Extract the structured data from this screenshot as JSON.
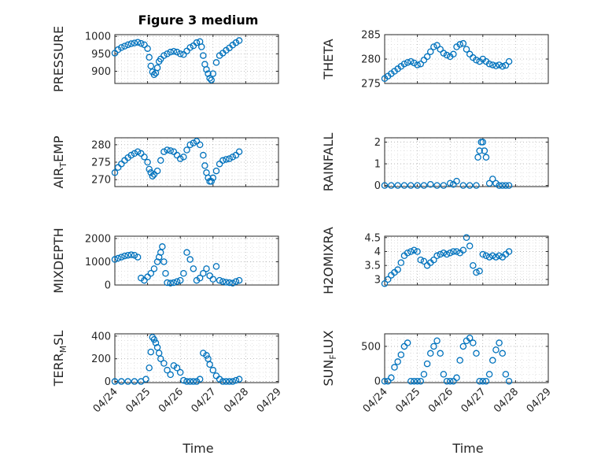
{
  "figure": {
    "title": "Figure 3 medium",
    "xlabel": "Time",
    "marker_color": "#0072BD",
    "axis_color": "#262626",
    "grid_color": "#9a9a9a"
  },
  "chart_data": [
    {
      "type": "scatter",
      "ylabel": "PRESSURE",
      "ylim": [
        865,
        1005
      ],
      "yticks": [
        900,
        950,
        1000
      ],
      "xlim": [
        0,
        5
      ],
      "xticks": [
        "04/24",
        "04/25",
        "04/26",
        "04/27",
        "04/28",
        "04/29"
      ],
      "grid": true,
      "show_xticklabels": false,
      "x": [
        0,
        0.1,
        0.2,
        0.3,
        0.4,
        0.5,
        0.6,
        0.7,
        0.8,
        0.9,
        1.0,
        1.05,
        1.1,
        1.15,
        1.2,
        1.25,
        1.3,
        1.35,
        1.4,
        1.5,
        1.6,
        1.7,
        1.8,
        1.9,
        2.0,
        2.1,
        2.2,
        2.3,
        2.4,
        2.5,
        2.6,
        2.65,
        2.7,
        2.75,
        2.8,
        2.85,
        2.9,
        2.95,
        3.0,
        3.1,
        3.2,
        3.3,
        3.4,
        3.5,
        3.6,
        3.7,
        3.8
      ],
      "y": [
        952,
        962,
        968,
        972,
        976,
        979,
        981,
        983,
        980,
        976,
        965,
        940,
        915,
        898,
        890,
        895,
        910,
        928,
        935,
        945,
        950,
        955,
        957,
        955,
        950,
        948,
        958,
        968,
        973,
        982,
        985,
        970,
        945,
        920,
        905,
        893,
        880,
        875,
        893,
        925,
        945,
        952,
        960,
        967,
        975,
        982,
        988
      ]
    },
    {
      "type": "scatter",
      "ylabel": "THETA",
      "ylim": [
        275,
        285
      ],
      "yticks": [
        275,
        280,
        285
      ],
      "xlim": [
        0,
        5
      ],
      "xticks": [
        "04/24",
        "04/25",
        "04/26",
        "04/27",
        "04/28",
        "04/29"
      ],
      "grid": true,
      "show_xticklabels": false,
      "x": [
        0,
        0.1,
        0.2,
        0.3,
        0.4,
        0.5,
        0.6,
        0.7,
        0.8,
        0.9,
        1.0,
        1.1,
        1.2,
        1.3,
        1.4,
        1.5,
        1.6,
        1.7,
        1.8,
        1.9,
        2.0,
        2.1,
        2.2,
        2.3,
        2.4,
        2.5,
        2.6,
        2.7,
        2.8,
        2.9,
        3.0,
        3.1,
        3.2,
        3.3,
        3.4,
        3.5,
        3.6,
        3.7,
        3.8
      ],
      "y": [
        276,
        276.5,
        277,
        277.5,
        278,
        278.5,
        279,
        279.3,
        279.5,
        279.2,
        278.8,
        279.0,
        279.8,
        280.5,
        281.5,
        282.5,
        282.8,
        282.0,
        281.2,
        280.8,
        280.5,
        281.0,
        282.5,
        283.0,
        283.2,
        282.0,
        281.0,
        280.3,
        279.8,
        279.5,
        280.0,
        279.5,
        279.0,
        278.8,
        278.6,
        278.8,
        278.5,
        278.7,
        279.5
      ]
    },
    {
      "type": "scatter",
      "ylabel": "AIR_TEMP",
      "ylim": [
        268,
        282
      ],
      "yticks": [
        270,
        275,
        280
      ],
      "xlim": [
        0,
        5
      ],
      "xticks": [
        "04/24",
        "04/25",
        "04/26",
        "04/27",
        "04/28",
        "04/29"
      ],
      "grid": true,
      "show_xticklabels": false,
      "x": [
        0,
        0.1,
        0.2,
        0.3,
        0.4,
        0.5,
        0.6,
        0.7,
        0.8,
        0.9,
        1.0,
        1.05,
        1.1,
        1.15,
        1.2,
        1.3,
        1.4,
        1.5,
        1.6,
        1.7,
        1.8,
        1.9,
        2.0,
        2.1,
        2.2,
        2.3,
        2.4,
        2.5,
        2.6,
        2.7,
        2.75,
        2.8,
        2.85,
        2.9,
        2.95,
        3.0,
        3.1,
        3.2,
        3.3,
        3.4,
        3.5,
        3.6,
        3.7,
        3.8
      ],
      "y": [
        272,
        273.5,
        274.5,
        275.5,
        276.3,
        277,
        277.5,
        278,
        277.5,
        276.5,
        275,
        273,
        272,
        271,
        271.5,
        272.5,
        275.5,
        278,
        278.5,
        278.3,
        278,
        277,
        276,
        276.5,
        278.5,
        280,
        280.5,
        281,
        280,
        277,
        274,
        272,
        270.5,
        269.5,
        269.5,
        270.5,
        272.5,
        274.5,
        275.5,
        275.8,
        276,
        276.5,
        277,
        278
      ]
    },
    {
      "type": "scatter",
      "ylabel": "RAINFALL",
      "ylim": [
        -0.05,
        2.2
      ],
      "yticks": [
        0,
        1,
        2
      ],
      "xlim": [
        0,
        5
      ],
      "xticks": [
        "04/24",
        "04/25",
        "04/26",
        "04/27",
        "04/28",
        "04/29"
      ],
      "grid": true,
      "show_xticklabels": false,
      "x": [
        0,
        0.2,
        0.4,
        0.6,
        0.8,
        1.0,
        1.2,
        1.4,
        1.6,
        1.8,
        2.0,
        2.1,
        2.2,
        2.4,
        2.6,
        2.8,
        2.85,
        2.9,
        2.95,
        3.0,
        3.05,
        3.1,
        3.2,
        3.3,
        3.4,
        3.5,
        3.6,
        3.7,
        3.8
      ],
      "y": [
        0,
        0,
        0,
        0,
        0,
        0,
        0,
        0.05,
        0,
        0,
        0.1,
        0.05,
        0.2,
        0,
        0,
        0,
        1.3,
        1.6,
        2.0,
        2.0,
        1.6,
        1.3,
        0.1,
        0.3,
        0.1,
        0,
        0,
        0,
        0
      ]
    },
    {
      "type": "scatter",
      "ylabel": "MIXDEPTH",
      "ylim": [
        0,
        2100
      ],
      "yticks": [
        0,
        1000,
        2000
      ],
      "xlim": [
        0,
        5
      ],
      "xticks": [
        "04/24",
        "04/25",
        "04/26",
        "04/27",
        "04/28",
        "04/29"
      ],
      "grid": true,
      "show_xticklabels": false,
      "x": [
        0,
        0.1,
        0.2,
        0.3,
        0.4,
        0.5,
        0.6,
        0.7,
        0.8,
        0.9,
        1.0,
        1.1,
        1.2,
        1.3,
        1.35,
        1.4,
        1.45,
        1.5,
        1.55,
        1.6,
        1.7,
        1.8,
        1.9,
        2.0,
        2.1,
        2.2,
        2.3,
        2.4,
        2.5,
        2.6,
        2.7,
        2.8,
        2.9,
        3.0,
        3.1,
        3.2,
        3.3,
        3.4,
        3.5,
        3.6,
        3.7,
        3.8
      ],
      "y": [
        1100,
        1150,
        1200,
        1250,
        1280,
        1300,
        1280,
        1200,
        300,
        200,
        350,
        500,
        700,
        1000,
        1200,
        1400,
        1650,
        1000,
        500,
        100,
        80,
        100,
        150,
        200,
        500,
        1400,
        1100,
        700,
        200,
        300,
        500,
        700,
        400,
        250,
        800,
        200,
        150,
        120,
        100,
        80,
        150,
        200
      ]
    },
    {
      "type": "scatter",
      "ylabel": "H2OMIXRA",
      "ylim": [
        2.8,
        4.55
      ],
      "yticks": [
        3,
        3.5,
        4,
        4.5
      ],
      "xlim": [
        0,
        5
      ],
      "xticks": [
        "04/24",
        "04/25",
        "04/26",
        "04/27",
        "04/28",
        "04/29"
      ],
      "grid": true,
      "show_xticklabels": false,
      "x": [
        0,
        0.1,
        0.2,
        0.3,
        0.4,
        0.5,
        0.6,
        0.7,
        0.8,
        0.9,
        1.0,
        1.1,
        1.2,
        1.3,
        1.4,
        1.5,
        1.6,
        1.7,
        1.8,
        1.9,
        2.0,
        2.1,
        2.2,
        2.3,
        2.4,
        2.5,
        2.6,
        2.7,
        2.8,
        2.9,
        3.0,
        3.1,
        3.2,
        3.3,
        3.4,
        3.5,
        3.6,
        3.7,
        3.8
      ],
      "y": [
        2.85,
        3.0,
        3.15,
        3.25,
        3.35,
        3.6,
        3.85,
        3.95,
        4.0,
        4.05,
        4.0,
        3.7,
        3.65,
        3.5,
        3.6,
        3.7,
        3.85,
        3.9,
        3.95,
        3.9,
        3.95,
        4.0,
        4.0,
        3.95,
        4.05,
        4.5,
        4.2,
        3.5,
        3.25,
        3.3,
        3.9,
        3.85,
        3.8,
        3.85,
        3.8,
        3.85,
        3.8,
        3.9,
        4.0
      ]
    },
    {
      "type": "scatter",
      "ylabel": "TERR_MSL",
      "ylim": [
        -10,
        420
      ],
      "yticks": [
        0,
        200,
        400
      ],
      "xlim": [
        0,
        5
      ],
      "xticks": [
        "04/24",
        "04/25",
        "04/26",
        "04/27",
        "04/28",
        "04/29"
      ],
      "grid": true,
      "show_xticklabels": true,
      "x": [
        0,
        0.2,
        0.4,
        0.6,
        0.8,
        0.95,
        1.05,
        1.1,
        1.15,
        1.2,
        1.25,
        1.3,
        1.35,
        1.4,
        1.5,
        1.6,
        1.7,
        1.8,
        1.9,
        2.0,
        2.1,
        2.2,
        2.3,
        2.4,
        2.5,
        2.6,
        2.7,
        2.8,
        2.85,
        2.9,
        3.0,
        3.1,
        3.2,
        3.3,
        3.4,
        3.5,
        3.6,
        3.7,
        3.8
      ],
      "y": [
        0,
        0,
        0,
        0,
        0,
        20,
        120,
        260,
        390,
        370,
        340,
        300,
        250,
        200,
        160,
        100,
        60,
        140,
        120,
        80,
        10,
        0,
        0,
        0,
        0,
        20,
        250,
        230,
        200,
        150,
        100,
        50,
        20,
        0,
        0,
        0,
        0,
        10,
        20
      ]
    },
    {
      "type": "scatter",
      "ylabel": "SUN_FLUX",
      "ylim": [
        -20,
        680
      ],
      "yticks": [
        0,
        500
      ],
      "xlim": [
        0,
        5
      ],
      "xticks": [
        "04/24",
        "04/25",
        "04/26",
        "04/27",
        "04/28",
        "04/29"
      ],
      "grid": true,
      "show_xticklabels": true,
      "x": [
        0,
        0.1,
        0.2,
        0.3,
        0.4,
        0.5,
        0.6,
        0.7,
        0.8,
        0.9,
        1.0,
        1.1,
        1.2,
        1.3,
        1.4,
        1.5,
        1.6,
        1.7,
        1.8,
        1.9,
        2.0,
        2.1,
        2.2,
        2.3,
        2.4,
        2.5,
        2.6,
        2.7,
        2.8,
        2.9,
        3.0,
        3.1,
        3.2,
        3.3,
        3.4,
        3.5,
        3.6,
        3.7,
        3.8
      ],
      "y": [
        0,
        0,
        50,
        200,
        280,
        380,
        500,
        550,
        0,
        0,
        0,
        0,
        100,
        250,
        400,
        500,
        580,
        400,
        100,
        0,
        0,
        0,
        50,
        300,
        500,
        580,
        620,
        550,
        400,
        0,
        0,
        0,
        100,
        300,
        450,
        550,
        400,
        100,
        0
      ]
    }
  ]
}
